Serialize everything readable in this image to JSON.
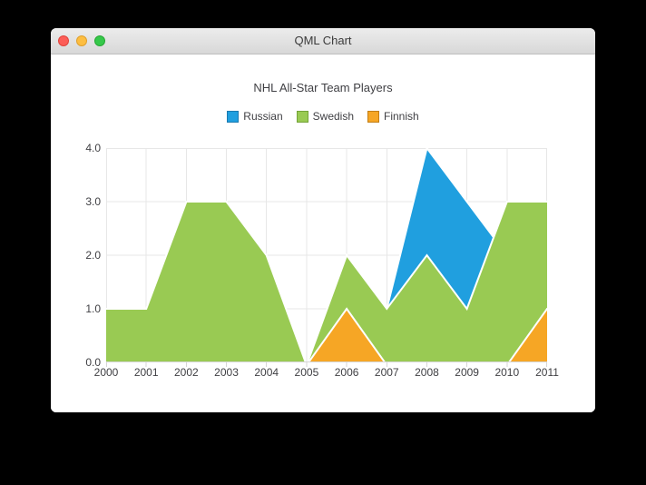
{
  "window": {
    "title": "QML Chart"
  },
  "chart_data": {
    "type": "area",
    "title": "NHL All-Star Team Players",
    "x": [
      "2000",
      "2001",
      "2002",
      "2003",
      "2004",
      "2005",
      "2006",
      "2007",
      "2008",
      "2009",
      "2010",
      "2011"
    ],
    "series": [
      {
        "name": "Russian",
        "color": "#209fdf",
        "marker_border": "#1a7ab0",
        "values": [
          1,
          1,
          1,
          1,
          1,
          0,
          1,
          1,
          4,
          3,
          2,
          1
        ]
      },
      {
        "name": "Swedish",
        "color": "#99ca53",
        "marker_border": "#74a338",
        "values": [
          1,
          1,
          3,
          3,
          2,
          0,
          2,
          1,
          2,
          1,
          3,
          3
        ]
      },
      {
        "name": "Finnish",
        "color": "#f6a625",
        "marker_border": "#c27e15",
        "values": [
          0,
          0,
          0,
          0,
          0,
          0,
          1,
          0,
          0,
          0,
          0,
          1
        ]
      }
    ],
    "y_tick_labels": [
      "4.0",
      "3.0",
      "2.0",
      "1.0",
      "0.0"
    ],
    "ylim": [
      0,
      4
    ],
    "legend_position": "top",
    "grid": true,
    "area_border_color": "#ffffff",
    "grid_color": "#e7e7e7",
    "axis_color": "#d6d6d6",
    "text_color": "#404044"
  }
}
